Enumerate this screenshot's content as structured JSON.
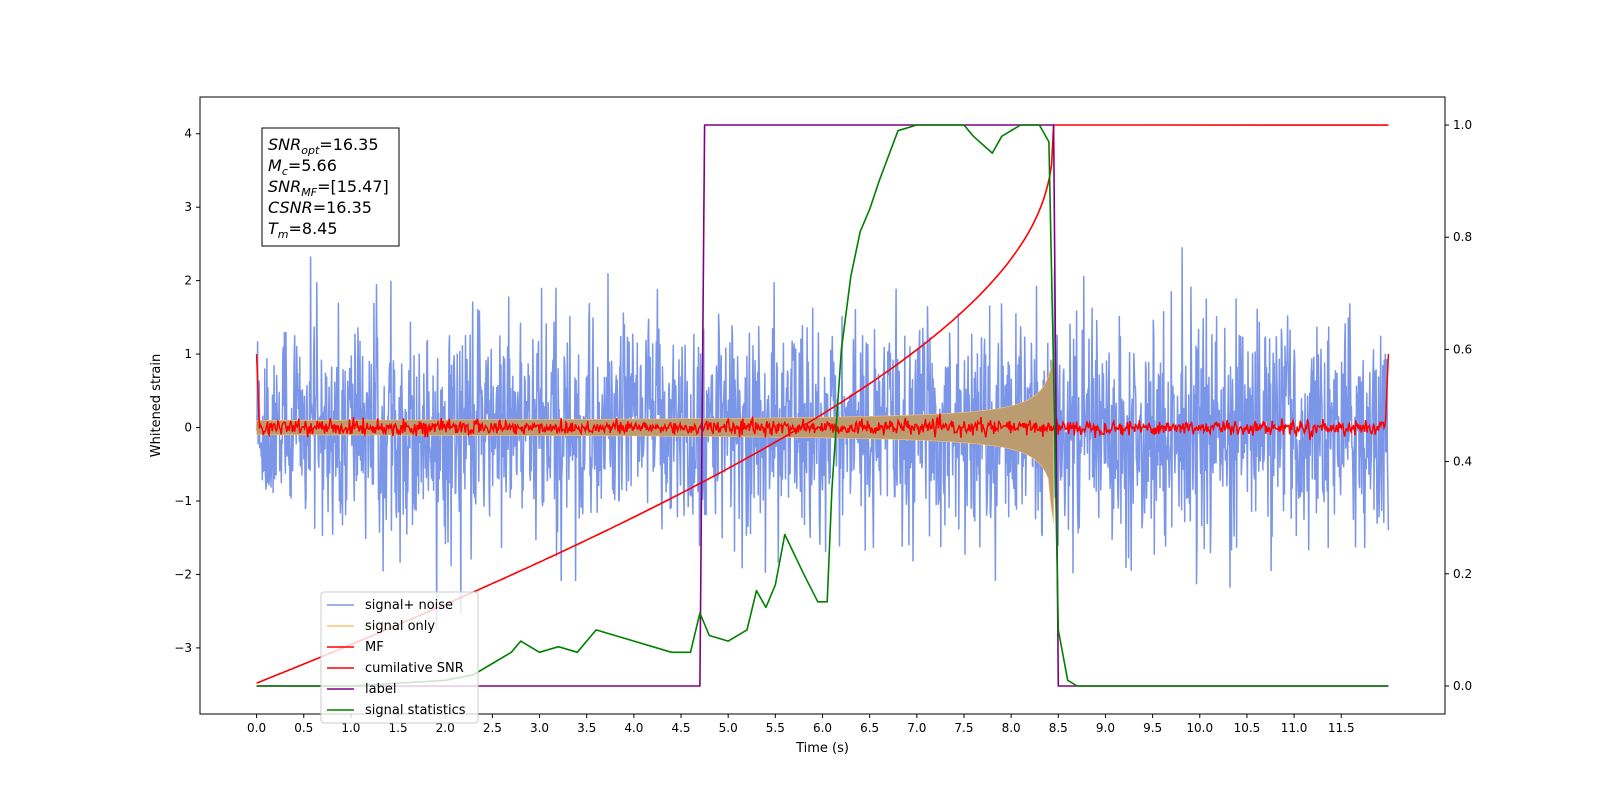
{
  "chart_data": {
    "type": "line",
    "title": "",
    "xlabel": "Time (s)",
    "ylabel": "Whitened strain",
    "y2label": "",
    "xlim": [
      -0.6,
      12.6
    ],
    "ylim": [
      -3.9,
      4.5
    ],
    "y2lim": [
      -0.05,
      1.05
    ],
    "xticks": [
      "0.0",
      "0.5",
      "1.0",
      "1.5",
      "2.0",
      "2.5",
      "3.0",
      "3.5",
      "4.0",
      "4.5",
      "5.0",
      "5.5",
      "6.0",
      "6.5",
      "7.0",
      "7.5",
      "8.0",
      "8.5",
      "9.0",
      "9.5",
      "10.0",
      "10.5",
      "11.0",
      "11.5"
    ],
    "yticks": [
      "−3",
      "−2",
      "−1",
      "0",
      "1",
      "2",
      "3",
      "4"
    ],
    "y2ticks": [
      "0.0",
      "0.2",
      "0.4",
      "0.6",
      "0.8",
      "1.0"
    ],
    "legend_position": "lower-left",
    "colors": {
      "noise": "#7b96e8",
      "signal_only": "#ffc470",
      "signal_fill": "#bb9b70",
      "mf": "#ff0000",
      "csnr": "#ff0000",
      "label": "#800080",
      "stats": "#008000"
    },
    "annotation": {
      "lines": [
        {
          "sym": "SNR",
          "sub": "opt",
          "eq": "=16.35"
        },
        {
          "sym": "M",
          "sub": "c",
          "eq": "=5.66"
        },
        {
          "sym": "SNR",
          "sub": "MF",
          "eq": "=[15.47]"
        },
        {
          "sym": "CSNR",
          "sub": "",
          "eq": "=16.35"
        },
        {
          "sym": "T",
          "sub": "m",
          "eq": "=8.45"
        }
      ]
    },
    "legend": [
      {
        "name": "signal+ noise",
        "color": "#7b96e8"
      },
      {
        "name": "signal only",
        "color": "#ffc470"
      },
      {
        "name": "MF",
        "color": "#ff0000"
      },
      {
        "name": "cumilative SNR",
        "color": "#ff0000"
      },
      {
        "name": "label",
        "color": "#800080"
      },
      {
        "name": "signal statistics",
        "color": "#008000"
      }
    ],
    "series": [
      {
        "name": "signal+ noise",
        "axis": "left",
        "style": "noise",
        "x_range": [
          0.0,
          12.0
        ],
        "amplitude": 1.2
      },
      {
        "name": "signal only",
        "axis": "left",
        "style": "chirp",
        "x_range": [
          0.0,
          8.45
        ],
        "amplitude_start": 0.07,
        "amplitude_end": 1.0
      },
      {
        "name": "MF",
        "axis": "left",
        "style": "noise",
        "x_range": [
          0.0,
          12.0
        ],
        "amplitude": 0.05,
        "edge_value": 1.0
      },
      {
        "name": "cumilative SNR",
        "axis": "right",
        "x": [
          0.0,
          0.5,
          1.0,
          1.5,
          2.0,
          2.5,
          3.0,
          3.5,
          4.0,
          4.5,
          5.0,
          5.5,
          6.0,
          6.5,
          7.0,
          7.5,
          8.0,
          8.3,
          8.45,
          8.5,
          12.0
        ],
        "values": [
          0.01,
          0.06,
          0.09,
          0.11,
          0.14,
          0.17,
          0.2,
          0.22,
          0.25,
          0.28,
          0.32,
          0.36,
          0.41,
          0.47,
          0.54,
          0.63,
          0.75,
          0.86,
          1.0,
          1.0,
          1.0
        ]
      },
      {
        "name": "label",
        "axis": "right",
        "x": [
          0.0,
          4.7,
          4.75,
          8.45,
          8.5,
          12.0
        ],
        "values": [
          0.0,
          0.0,
          1.0,
          1.0,
          0.0,
          0.0
        ]
      },
      {
        "name": "signal statistics",
        "axis": "right",
        "x": [
          0.0,
          1.0,
          2.0,
          2.3,
          2.5,
          2.7,
          2.8,
          3.0,
          3.2,
          3.4,
          3.6,
          3.8,
          4.0,
          4.2,
          4.4,
          4.6,
          4.7,
          4.8,
          5.0,
          5.2,
          5.3,
          5.4,
          5.5,
          5.6,
          5.8,
          5.95,
          6.05,
          6.1,
          6.2,
          6.3,
          6.4,
          6.5,
          6.6,
          6.8,
          7.0,
          7.5,
          7.6,
          7.8,
          7.9,
          8.1,
          8.3,
          8.4,
          8.45,
          8.5,
          8.6,
          8.7,
          9.0,
          12.0
        ],
        "values": [
          0.0,
          0.0,
          0.01,
          0.02,
          0.04,
          0.06,
          0.08,
          0.06,
          0.07,
          0.06,
          0.1,
          0.09,
          0.08,
          0.07,
          0.06,
          0.06,
          0.13,
          0.09,
          0.08,
          0.1,
          0.17,
          0.14,
          0.18,
          0.27,
          0.2,
          0.15,
          0.15,
          0.35,
          0.6,
          0.73,
          0.81,
          0.85,
          0.9,
          0.99,
          1.0,
          1.0,
          0.98,
          0.95,
          0.98,
          1.0,
          1.0,
          0.97,
          0.56,
          0.1,
          0.01,
          0.0,
          0.0,
          0.0
        ]
      }
    ]
  }
}
